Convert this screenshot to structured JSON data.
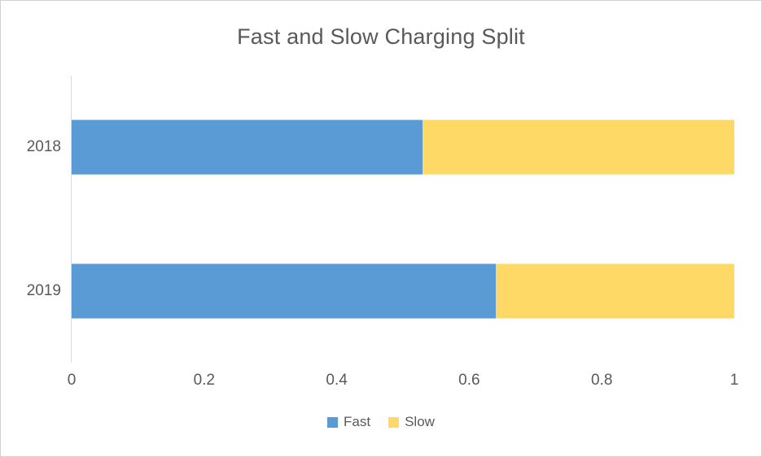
{
  "chart_data": {
    "type": "bar",
    "orientation": "horizontal",
    "stacked": true,
    "title": "Fast and Slow Charging Split",
    "categories": [
      "2018",
      "2019"
    ],
    "series": [
      {
        "name": "Fast",
        "color": "#5B9BD5",
        "values": [
          0.53,
          0.64
        ]
      },
      {
        "name": "Slow",
        "color": "#FFD966",
        "values": [
          0.47,
          0.36
        ]
      }
    ],
    "xlim": [
      0,
      1
    ],
    "x_ticks": [
      0,
      0.2,
      0.4,
      0.6,
      0.8,
      1
    ],
    "x_tick_labels": [
      "0",
      "0.2",
      "0.4",
      "0.6",
      "0.8",
      "1"
    ],
    "grid": false,
    "legend_position": "bottom"
  },
  "colors": {
    "title_text": "#595959",
    "axis_text": "#595959",
    "axis_line": "#D9D9D9",
    "frame_border": "#D0D0D0"
  },
  "legend": {
    "items": [
      {
        "label": "Fast",
        "color": "#5B9BD5"
      },
      {
        "label": "Slow",
        "color": "#FFD966"
      }
    ]
  }
}
